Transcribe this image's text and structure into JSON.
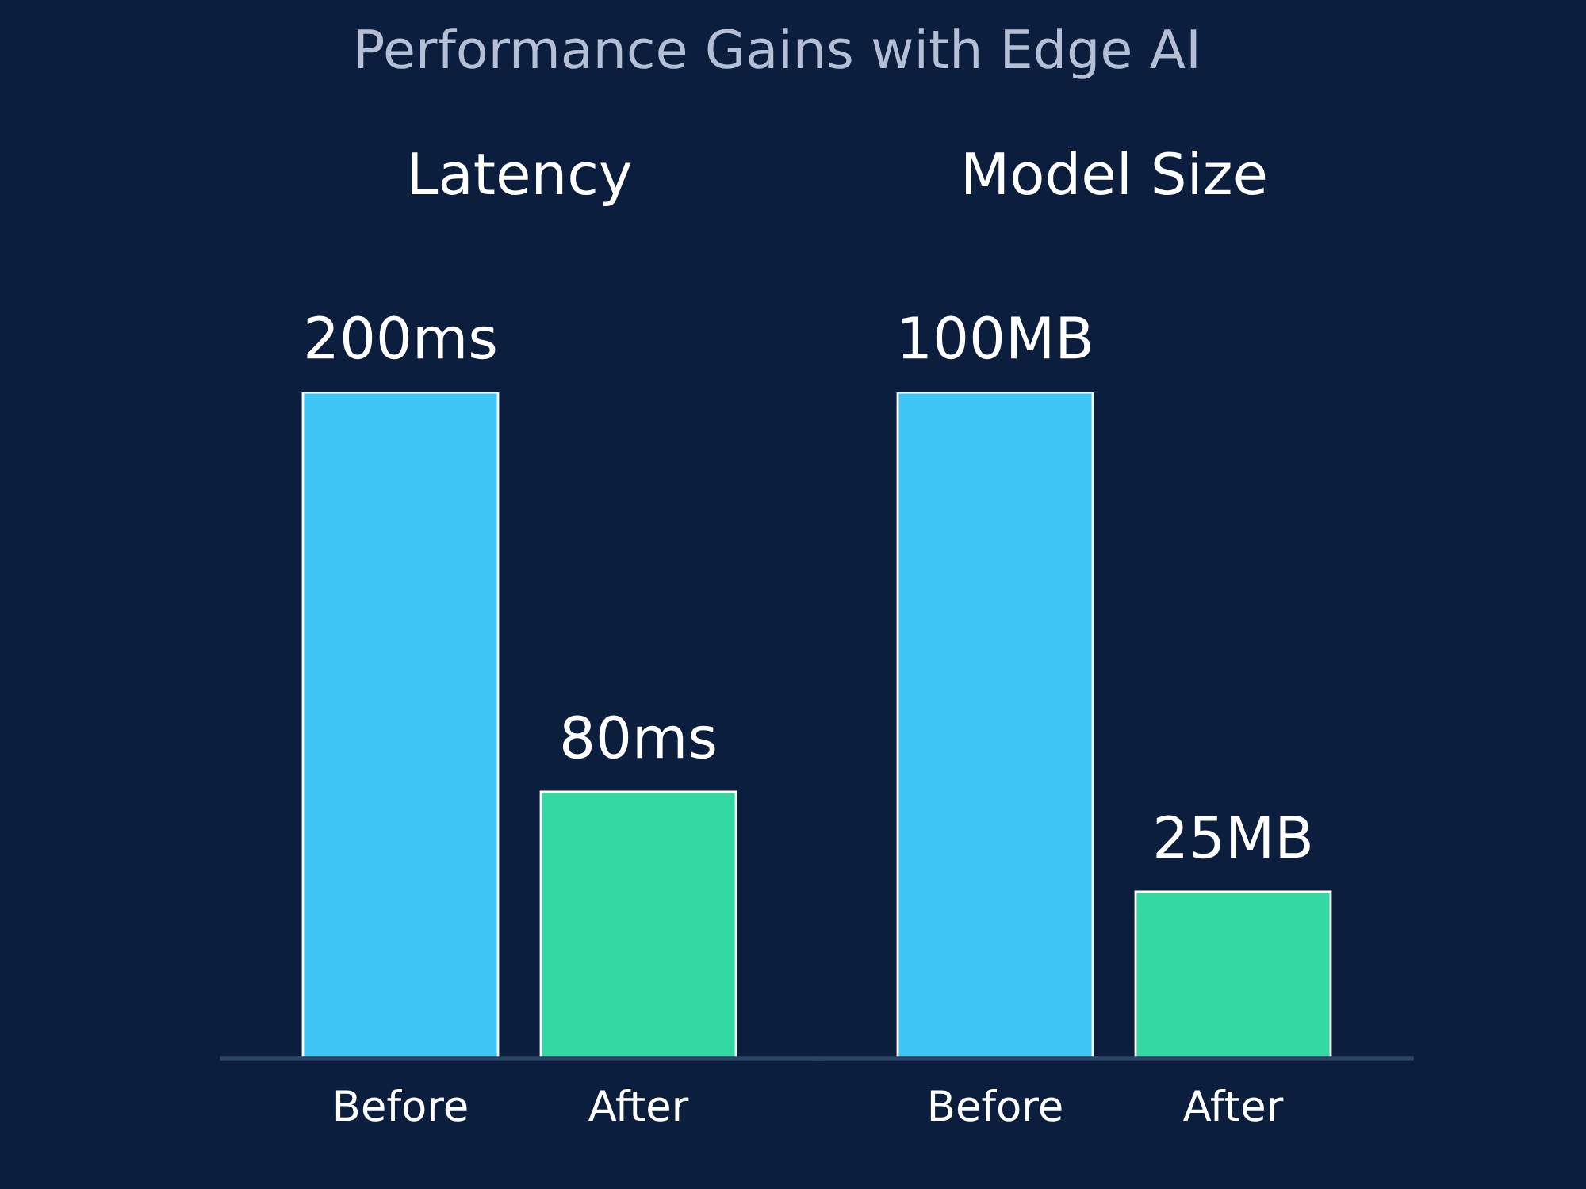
{
  "chart_data": [
    {
      "type": "bar",
      "title": "Latency",
      "annotations": [
        "Performance Gains with Edge AI"
      ],
      "categories": [
        "Before",
        "After"
      ],
      "values": [
        200,
        80
      ],
      "colors": [
        "#3ec6f6",
        "#34d8a2"
      ],
      "value_labels": [
        "200ms",
        "80ms"
      ],
      "grid": false,
      "legend": false
    },
    {
      "type": "bar",
      "title": "Model Size",
      "categories": [
        "Before",
        "After"
      ],
      "values": [
        100,
        25
      ],
      "colors": [
        "#3ec6f6",
        "#34d8a2"
      ],
      "value_labels": [
        "100MB",
        "25MB"
      ],
      "grid": false,
      "legend": false
    }
  ]
}
